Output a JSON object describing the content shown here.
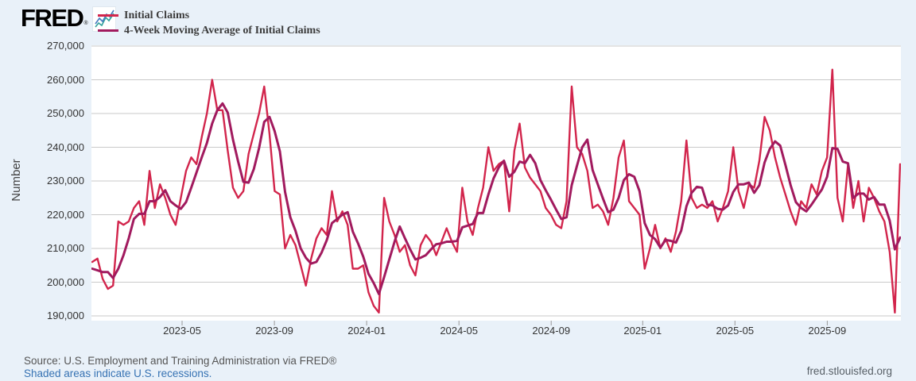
{
  "header": {
    "logo_text": "FRED",
    "registered_mark": "®",
    "logo_icon": "sparkline-icon",
    "legend": [
      {
        "label": "Initial Claims",
        "color": "#d2254c"
      },
      {
        "label": "4-Week Moving Average of Initial Claims",
        "color": "#a11a5e"
      }
    ]
  },
  "footer": {
    "source_line": "Source: U.S. Employment and Training Administration via FRED®",
    "recession_note": "Shaded areas indicate U.S. recessions.",
    "site_link": "fred.stlouisfed.org"
  },
  "chart_data": {
    "type": "line",
    "title": "",
    "xlabel": "",
    "ylabel": "Number",
    "ylim": [
      190000,
      270000
    ],
    "y_ticks": [
      270000,
      260000,
      250000,
      240000,
      230000,
      220000,
      210000,
      200000,
      190000
    ],
    "y_tick_labels": [
      "270,000",
      "260,000",
      "250,000",
      "240,000",
      "230,000",
      "220,000",
      "210,000",
      "200,000",
      "190,000"
    ],
    "x_tick_labels": [
      "2023-05",
      "2023-09",
      "2024-01",
      "2024-05",
      "2024-09",
      "2025-01",
      "2025-05",
      "2025-09"
    ],
    "x_tick_positions": [
      0.112,
      0.226,
      0.34,
      0.454,
      0.568,
      0.681,
      0.795,
      0.909
    ],
    "x_start": "2023-01-07",
    "x_end": "2025-12-20",
    "frequency": "weekly",
    "grid": "horizontal-only",
    "legend_position": "top-left",
    "background_color": "#e9f1f9",
    "plot_background": "#ffffff",
    "gridline_color": "#c9c9c9",
    "series": [
      {
        "name": "Initial Claims",
        "color": "#d2254c",
        "values": [
          206000,
          207000,
          201000,
          198000,
          199000,
          218000,
          217000,
          218000,
          222000,
          224000,
          217000,
          233000,
          222000,
          229000,
          225000,
          220000,
          217000,
          225000,
          233000,
          237000,
          235000,
          243000,
          250000,
          260000,
          251000,
          251000,
          239000,
          228000,
          225000,
          227000,
          238000,
          244000,
          250000,
          258000,
          244000,
          227000,
          226000,
          210000,
          214000,
          211000,
          205000,
          199000,
          207000,
          213000,
          216000,
          214000,
          227000,
          218000,
          221000,
          217000,
          204000,
          204000,
          205000,
          197000,
          193000,
          191000,
          225000,
          218000,
          214000,
          209000,
          211000,
          205000,
          202000,
          211000,
          214000,
          212000,
          208000,
          212000,
          216000,
          212000,
          209000,
          228000,
          218000,
          214000,
          222000,
          228000,
          240000,
          233000,
          235000,
          236000,
          221000,
          239000,
          247000,
          234000,
          231000,
          229000,
          227000,
          222000,
          220000,
          217000,
          216000,
          224000,
          258000,
          240000,
          238000,
          233000,
          222000,
          223000,
          221000,
          217000,
          225000,
          237000,
          242000,
          224000,
          222000,
          220000,
          204000,
          210000,
          217000,
          210000,
          213000,
          209000,
          215000,
          224000,
          242000,
          225000,
          222000,
          223000,
          222000,
          224000,
          218000,
          222000,
          227000,
          240000,
          227000,
          222000,
          229000,
          228000,
          236000,
          249000,
          245000,
          237000,
          231000,
          226000,
          221000,
          217000,
          224000,
          222000,
          229000,
          226000,
          233000,
          237000,
          263000,
          225000,
          218000,
          235000,
          222000,
          230000,
          218000,
          228000,
          225000,
          221000,
          218000,
          209000,
          191000,
          235000
        ]
      },
      {
        "name": "4-Week Moving Average of Initial Claims",
        "color": "#a11a5e",
        "values": [
          204000,
          203500,
          203000,
          203000,
          201250,
          204000,
          208000,
          213000,
          218750,
          220250,
          220250,
          224000,
          224000,
          225250,
          227250,
          224000,
          222750,
          221750,
          223750,
          228000,
          232500,
          237000,
          241250,
          247000,
          251000,
          253000,
          250250,
          242250,
          235750,
          229750,
          229500,
          233500,
          239750,
          247500,
          249000,
          244750,
          238750,
          226750,
          219250,
          215250,
          210000,
          207250,
          205500,
          206000,
          208750,
          212500,
          217500,
          218750,
          220000,
          220750,
          215000,
          211500,
          207500,
          202500,
          199750,
          196500,
          201500,
          206750,
          212000,
          216500,
          213000,
          209750,
          206750,
          207250,
          208000,
          209750,
          211250,
          211500,
          212000,
          212000,
          212250,
          216250,
          216750,
          217250,
          220500,
          220500,
          226000,
          230750,
          234000,
          236000,
          231250,
          232750,
          235750,
          235250,
          237750,
          235250,
          230250,
          227250,
          224500,
          221500,
          218750,
          219250,
          228750,
          234500,
          240000,
          242250,
          233250,
          229000,
          224750,
          220750,
          221500,
          225000,
          230250,
          232000,
          231250,
          227000,
          217500,
          214000,
          212750,
          210250,
          212500,
          212250,
          211750,
          215250,
          222500,
          226500,
          228250,
          228000,
          223000,
          222750,
          221750,
          221500,
          222750,
          226750,
          229000,
          229000,
          229500,
          226500,
          228750,
          235500,
          239500,
          241750,
          240500,
          234750,
          228750,
          223750,
          222000,
          221000,
          223000,
          225250,
          227500,
          231250,
          239750,
          239500,
          235750,
          235250,
          225000,
          226250,
          226250,
          224500,
          225250,
          223000,
          223000,
          218250,
          209750,
          213250
        ]
      }
    ]
  }
}
